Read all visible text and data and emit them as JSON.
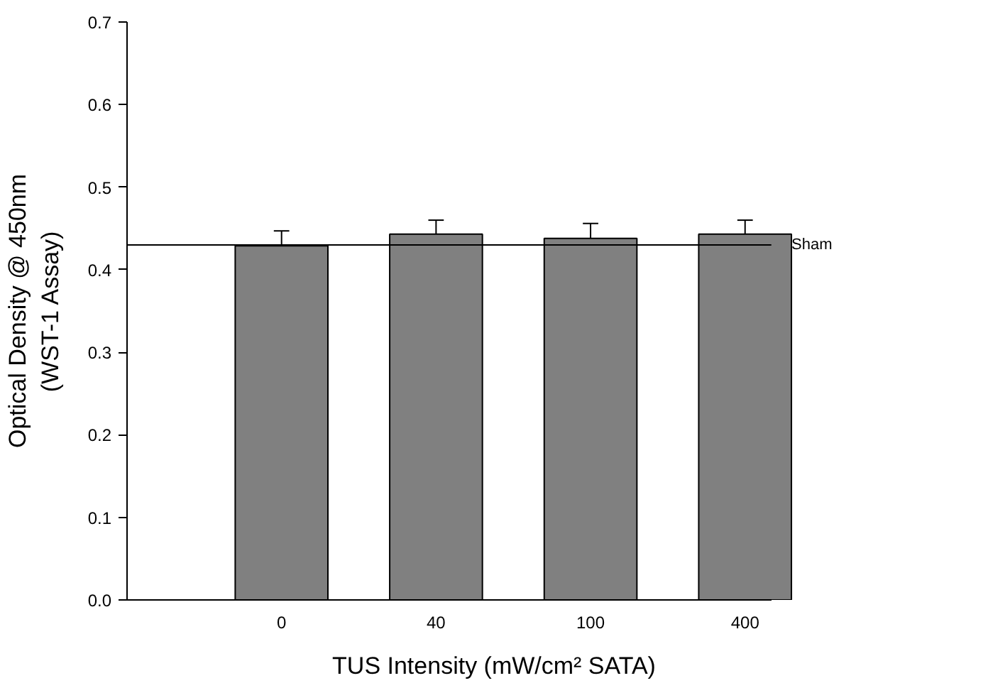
{
  "chart_data": {
    "type": "bar",
    "xlabel": "TUS Intensity (mW/cm² SATA)",
    "ylabel": "Optical Density @ 450nm\n(WST-1 Assay)",
    "categories": [
      "0",
      "40",
      "100",
      "400"
    ],
    "values": [
      0.429,
      0.443,
      0.438,
      0.443
    ],
    "errors": [
      [
        0.429,
        0.447
      ],
      [
        0.443,
        0.46
      ],
      [
        0.438,
        0.456
      ],
      [
        0.443,
        0.46
      ]
    ],
    "color": "#808080",
    "ylim": [
      0,
      0.7
    ],
    "yticks": [
      {
        "value": 0,
        "label": "0.0"
      },
      0.1,
      0.2,
      0.3,
      0.4,
      0.5,
      0.6,
      0.7
    ],
    "ref_lines": [
      {
        "axis": "y",
        "value": 0.43,
        "label": "Sham"
      }
    ],
    "grid": false
  }
}
